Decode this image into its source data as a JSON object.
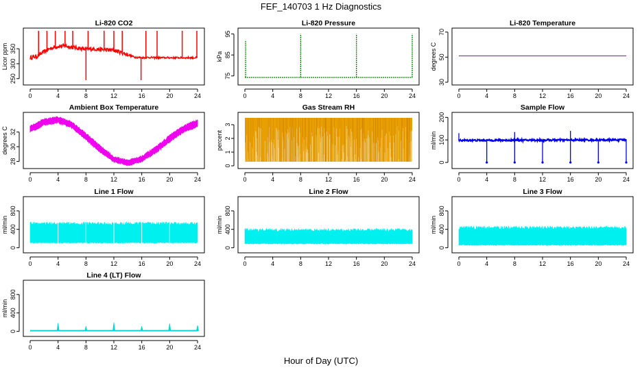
{
  "figure": {
    "title": "FEF_140703  1 Hz Diagnostics",
    "xlabel": "Hour of Day (UTC)"
  },
  "chart_data": [
    {
      "type": "line",
      "title": "Li-820 CO2",
      "ylabel": "Licor ppm",
      "xlim": [
        0,
        24
      ],
      "ylim": [
        238,
        410
      ],
      "xticks": [
        0,
        4,
        8,
        12,
        16,
        20,
        24
      ],
      "yticks": [
        250,
        300,
        350
      ],
      "color": "#ff0000",
      "pattern": "co2",
      "series": [
        {
          "x": [
            0,
            1,
            2,
            3,
            4,
            5,
            6,
            7,
            8,
            9,
            10,
            11,
            12,
            13,
            14,
            15,
            16,
            17,
            18,
            19,
            20,
            21,
            22,
            23,
            24
          ],
          "y": [
            320,
            325,
            340,
            352,
            358,
            360,
            355,
            352,
            348,
            350,
            348,
            346,
            345,
            338,
            330,
            322,
            320,
            321,
            320,
            320,
            320,
            320,
            320,
            320,
            320
          ]
        }
      ],
      "spikes": [
        {
          "x": 1.2,
          "y": 410
        },
        {
          "x": 2.4,
          "y": 410
        },
        {
          "x": 3.6,
          "y": 410
        },
        {
          "x": 5.0,
          "y": 410
        },
        {
          "x": 6.1,
          "y": 410
        },
        {
          "x": 8.0,
          "y": 245
        },
        {
          "x": 8.3,
          "y": 410
        },
        {
          "x": 10.6,
          "y": 410
        },
        {
          "x": 12.0,
          "y": 410
        },
        {
          "x": 13.2,
          "y": 410
        },
        {
          "x": 15.9,
          "y": 245
        },
        {
          "x": 16.6,
          "y": 410
        },
        {
          "x": 18.2,
          "y": 410
        },
        {
          "x": 21.8,
          "y": 410
        },
        {
          "x": 23.9,
          "y": 410
        }
      ]
    },
    {
      "type": "line",
      "title": "Li-820 Pressure",
      "ylabel": "kPa",
      "xlim": [
        0,
        24
      ],
      "ylim": [
        72,
        96.5
      ],
      "xticks": [
        0,
        4,
        8,
        12,
        16,
        20,
        24
      ],
      "yticks": [
        75,
        85,
        95
      ],
      "color": "#008800",
      "pattern": "pressure",
      "series": [
        {
          "x": [
            0,
            24
          ],
          "y": [
            74.3,
            74.3
          ]
        }
      ],
      "spikes": [
        {
          "x": 0.1,
          "y": 92
        },
        {
          "x": 8.0,
          "y": 95
        },
        {
          "x": 16.0,
          "y": 95
        },
        {
          "x": 24.0,
          "y": 95
        }
      ]
    },
    {
      "type": "line",
      "title": "Li-820 Temperature",
      "ylabel": "degrees C",
      "xlim": [
        0,
        24
      ],
      "ylim": [
        30,
        71
      ],
      "xticks": [
        0,
        4,
        8,
        12,
        16,
        20,
        24
      ],
      "yticks": [
        30,
        50,
        70
      ],
      "color": "#cc00cc",
      "pattern": "flat",
      "series": [
        {
          "x": [
            0,
            24
          ],
          "y": [
            51,
            51
          ]
        }
      ]
    },
    {
      "type": "area",
      "title": "Ambient Box Temperature",
      "ylabel": "degrees C",
      "xlim": [
        0,
        24
      ],
      "ylim": [
        27.4,
        34.3
      ],
      "xticks": [
        0,
        4,
        8,
        12,
        16,
        20,
        24
      ],
      "yticks": [
        28,
        30,
        32
      ],
      "color": "#ee00ee",
      "pattern": "band",
      "series": [
        {
          "x": [
            0,
            2,
            4,
            6,
            8,
            10,
            12,
            14,
            16,
            18,
            20,
            22,
            24
          ],
          "ylow": [
            32.0,
            33.0,
            33.3,
            32.6,
            31.0,
            29.3,
            28.0,
            27.5,
            28.0,
            29.2,
            30.7,
            32.0,
            32.8
          ],
          "yhigh": [
            32.8,
            33.7,
            34.0,
            33.3,
            31.8,
            30.1,
            28.6,
            28.1,
            28.7,
            29.9,
            31.5,
            32.8,
            33.6
          ]
        }
      ]
    },
    {
      "type": "area",
      "title": "Gas Stream RH",
      "ylabel": "percent",
      "xlim": [
        0,
        24
      ],
      "ylim": [
        0,
        3.7
      ],
      "xticks": [
        0,
        4,
        8,
        12,
        16,
        20,
        24
      ],
      "yticks": [
        0,
        1,
        2,
        3
      ],
      "color": "#e8a000",
      "pattern": "rh",
      "series": [
        {
          "x": [
            0,
            24
          ],
          "ylow": [
            0.3,
            0.3
          ],
          "yhigh": [
            3.5,
            3.5
          ]
        }
      ]
    },
    {
      "type": "line",
      "title": "Sample Flow",
      "ylabel": "ml/min",
      "xlim": [
        0,
        24
      ],
      "ylim": [
        -15,
        210
      ],
      "xticks": [
        0,
        4,
        8,
        12,
        16,
        20,
        24
      ],
      "yticks": [
        0,
        100,
        200
      ],
      "color": "#0000ee",
      "pattern": "sample",
      "series": [
        {
          "x": [
            0,
            24
          ],
          "y": [
            98,
            100
          ]
        }
      ],
      "spikes": [
        {
          "x": 0.0,
          "y": 130
        },
        {
          "x": 4.0,
          "y": 0
        },
        {
          "x": 8.0,
          "y": 135
        },
        {
          "x": 8.0,
          "y": 0
        },
        {
          "x": 12.0,
          "y": 0
        },
        {
          "x": 16.0,
          "y": 140
        },
        {
          "x": 16.0,
          "y": 0
        },
        {
          "x": 20.0,
          "y": 0
        },
        {
          "x": 24.0,
          "y": 0
        }
      ]
    },
    {
      "type": "area",
      "title": "Line 1 Flow",
      "ylabel": "ml/min",
      "xlim": [
        0,
        24
      ],
      "ylim": [
        -50,
        1050
      ],
      "xticks": [
        0,
        4,
        8,
        12,
        16,
        20,
        24
      ],
      "yticks": [
        0,
        400,
        800
      ],
      "color": "#00f0f0",
      "pattern": "flow",
      "series": [
        {
          "x": [
            0,
            24
          ],
          "ylow": [
            100,
            100
          ],
          "yhigh": [
            560,
            560
          ]
        }
      ],
      "gaps": [
        4,
        8,
        12,
        16,
        20
      ]
    },
    {
      "type": "area",
      "title": "Line 2 Flow",
      "ylabel": "ml/min",
      "xlim": [
        0,
        24
      ],
      "ylim": [
        -50,
        1050
      ],
      "xticks": [
        0,
        4,
        8,
        12,
        16,
        20,
        24
      ],
      "yticks": [
        0,
        400,
        800
      ],
      "color": "#00f0f0",
      "pattern": "flow",
      "series": [
        {
          "x": [
            0,
            24
          ],
          "ylow": [
            80,
            80
          ],
          "yhigh": [
            420,
            420
          ]
        }
      ],
      "gaps": []
    },
    {
      "type": "area",
      "title": "Line 3 Flow",
      "ylabel": "ml/min",
      "xlim": [
        0,
        24
      ],
      "ylim": [
        -50,
        1050
      ],
      "xticks": [
        0,
        4,
        8,
        12,
        16,
        20,
        24
      ],
      "yticks": [
        0,
        400,
        800
      ],
      "color": "#00f0f0",
      "pattern": "flow",
      "series": [
        {
          "x": [
            0,
            24
          ],
          "ylow": [
            50,
            50
          ],
          "yhigh": [
            470,
            470
          ]
        }
      ],
      "gaps": []
    },
    {
      "type": "line",
      "title": "Line 4 (LT) Flow",
      "ylabel": "ml/min",
      "xlim": [
        0,
        24
      ],
      "ylim": [
        -50,
        1050
      ],
      "xticks": [
        0,
        4,
        8,
        12,
        16,
        20,
        24
      ],
      "yticks": [
        0,
        400,
        800
      ],
      "color": "#00d8d8",
      "pattern": "line4",
      "series": [
        {
          "x": [
            0,
            24
          ],
          "y": [
            15,
            15
          ]
        }
      ],
      "spikes": [
        {
          "x": 4.0,
          "y": 180
        },
        {
          "x": 8.0,
          "y": 110
        },
        {
          "x": 12.0,
          "y": 190
        },
        {
          "x": 16.0,
          "y": 110
        },
        {
          "x": 20.0,
          "y": 170
        },
        {
          "x": 24.0,
          "y": 130
        }
      ]
    }
  ]
}
